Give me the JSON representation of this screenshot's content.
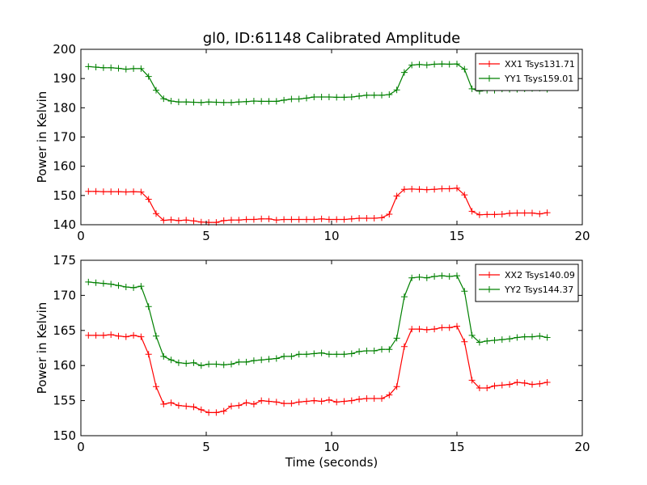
{
  "chart_data": [
    {
      "type": "line",
      "title": "gl0, ID:61148 Calibrated Amplitude",
      "xlabel": "",
      "ylabel": "Power in Kelvin",
      "xlim": [
        0,
        20
      ],
      "ylim": [
        140,
        200
      ],
      "xticks": [
        0,
        5,
        10,
        15,
        20
      ],
      "yticks": [
        140,
        150,
        160,
        170,
        180,
        190,
        200
      ],
      "legend_position": "upper right",
      "x": [
        0.3,
        0.6,
        0.9,
        1.2,
        1.5,
        1.8,
        2.1,
        2.4,
        2.7,
        3.0,
        3.3,
        3.6,
        3.9,
        4.2,
        4.5,
        4.8,
        5.1,
        5.4,
        5.7,
        6.0,
        6.3,
        6.6,
        6.9,
        7.2,
        7.5,
        7.8,
        8.1,
        8.4,
        8.7,
        9.0,
        9.3,
        9.6,
        9.9,
        10.2,
        10.5,
        10.8,
        11.1,
        11.4,
        11.7,
        12.0,
        12.3,
        12.6,
        12.9,
        13.2,
        13.5,
        13.8,
        14.1,
        14.4,
        14.7,
        15.0,
        15.3,
        15.6,
        15.9,
        16.2,
        16.5,
        16.8,
        17.1,
        17.4,
        17.7,
        18.0,
        18.3,
        18.6
      ],
      "series": [
        {
          "name": "XX1 Tsys131.71",
          "color": "#ff0000",
          "values": [
            151.4,
            151.4,
            151.3,
            151.3,
            151.3,
            151.2,
            151.3,
            151.2,
            148.7,
            143.8,
            141.5,
            141.7,
            141.4,
            141.6,
            141.3,
            140.9,
            140.8,
            140.8,
            141.4,
            141.6,
            141.6,
            141.8,
            141.8,
            142.0,
            142.0,
            141.6,
            141.8,
            141.8,
            141.8,
            141.8,
            141.8,
            142.0,
            141.8,
            141.8,
            141.8,
            142.0,
            142.2,
            142.2,
            142.2,
            142.4,
            143.6,
            149.8,
            152.1,
            152.2,
            152.1,
            152.0,
            152.1,
            152.3,
            152.3,
            152.5,
            150.2,
            144.6,
            143.4,
            143.5,
            143.5,
            143.6,
            143.9,
            144.0,
            144.0,
            144.0,
            143.7,
            144.1
          ]
        },
        {
          "name": "YY1 Tsys159.01",
          "color": "#008000",
          "values": [
            194.1,
            193.9,
            193.7,
            193.7,
            193.5,
            193.2,
            193.4,
            193.4,
            190.7,
            186.0,
            183.1,
            182.3,
            182.0,
            182.0,
            181.9,
            181.8,
            182.0,
            181.9,
            181.8,
            181.8,
            182.0,
            182.1,
            182.3,
            182.2,
            182.2,
            182.2,
            182.6,
            183.0,
            183.0,
            183.3,
            183.7,
            183.7,
            183.7,
            183.6,
            183.6,
            183.7,
            184.0,
            184.3,
            184.3,
            184.3,
            184.5,
            186.1,
            192.1,
            194.6,
            194.8,
            194.6,
            194.9,
            195.0,
            194.9,
            195.0,
            193.2,
            186.5,
            185.7,
            186.0,
            186.0,
            186.4,
            186.3,
            186.3,
            186.5,
            186.6,
            186.7,
            186.3
          ]
        }
      ]
    },
    {
      "type": "line",
      "title": "",
      "xlabel": "Time (seconds)",
      "ylabel": "Power in Kelvin",
      "xlim": [
        0,
        20
      ],
      "ylim": [
        150,
        175
      ],
      "xticks": [
        0,
        5,
        10,
        15,
        20
      ],
      "yticks": [
        150,
        155,
        160,
        165,
        170,
        175
      ],
      "legend_position": "upper right",
      "x": [
        0.3,
        0.6,
        0.9,
        1.2,
        1.5,
        1.8,
        2.1,
        2.4,
        2.7,
        3.0,
        3.3,
        3.6,
        3.9,
        4.2,
        4.5,
        4.8,
        5.1,
        5.4,
        5.7,
        6.0,
        6.3,
        6.6,
        6.9,
        7.2,
        7.5,
        7.8,
        8.1,
        8.4,
        8.7,
        9.0,
        9.3,
        9.6,
        9.9,
        10.2,
        10.5,
        10.8,
        11.1,
        11.4,
        11.7,
        12.0,
        12.3,
        12.6,
        12.9,
        13.2,
        13.5,
        13.8,
        14.1,
        14.4,
        14.7,
        15.0,
        15.3,
        15.6,
        15.9,
        16.2,
        16.5,
        16.8,
        17.1,
        17.4,
        17.7,
        18.0,
        18.3,
        18.6
      ],
      "series": [
        {
          "name": "XX2 Tsys140.09",
          "color": "#ff0000",
          "values": [
            164.3,
            164.3,
            164.3,
            164.4,
            164.2,
            164.1,
            164.3,
            164.1,
            161.6,
            157.0,
            154.5,
            154.7,
            154.3,
            154.2,
            154.1,
            153.7,
            153.3,
            153.3,
            153.5,
            154.2,
            154.3,
            154.7,
            154.5,
            155.0,
            154.9,
            154.8,
            154.6,
            154.6,
            154.8,
            154.9,
            155.0,
            154.9,
            155.1,
            154.8,
            154.9,
            155.0,
            155.2,
            155.3,
            155.3,
            155.3,
            155.8,
            157.0,
            162.7,
            165.2,
            165.2,
            165.1,
            165.2,
            165.4,
            165.4,
            165.6,
            163.4,
            157.9,
            156.8,
            156.8,
            157.1,
            157.2,
            157.3,
            157.6,
            157.5,
            157.3,
            157.4,
            157.6
          ]
        },
        {
          "name": "YY2 Tsys144.37",
          "color": "#008000",
          "values": [
            171.9,
            171.8,
            171.7,
            171.6,
            171.4,
            171.2,
            171.1,
            171.3,
            168.4,
            164.2,
            161.3,
            160.8,
            160.4,
            160.3,
            160.4,
            160.0,
            160.2,
            160.2,
            160.1,
            160.2,
            160.5,
            160.5,
            160.7,
            160.8,
            160.9,
            161.0,
            161.3,
            161.3,
            161.6,
            161.6,
            161.7,
            161.8,
            161.6,
            161.6,
            161.6,
            161.7,
            162.0,
            162.1,
            162.1,
            162.3,
            162.3,
            163.9,
            169.8,
            172.5,
            172.6,
            172.5,
            172.7,
            172.8,
            172.7,
            172.8,
            170.6,
            164.3,
            163.3,
            163.5,
            163.6,
            163.7,
            163.8,
            164.0,
            164.1,
            164.1,
            164.2,
            164.0
          ]
        }
      ]
    }
  ]
}
